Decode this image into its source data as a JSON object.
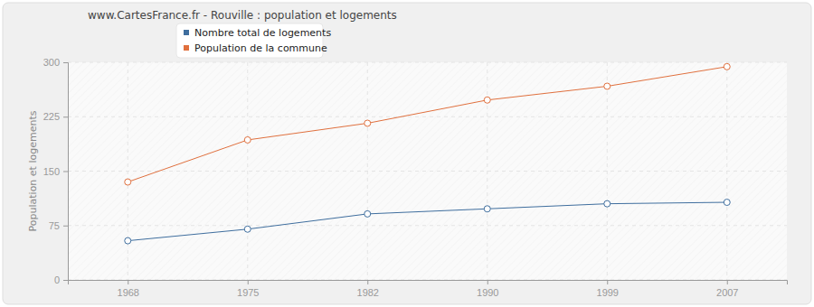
{
  "chart_data": {
    "type": "line",
    "title": "www.CartesFrance.fr - Rouville : population et logements",
    "y_label": "Population et logements",
    "categories": [
      "1968",
      "1975",
      "1982",
      "1990",
      "1999",
      "2007"
    ],
    "series": [
      {
        "name": "Nombre total de logements",
        "color": "#3f6e9e",
        "values": [
          54,
          70,
          91,
          98,
          105,
          107
        ]
      },
      {
        "name": "Population de la commune",
        "color": "#e0703e",
        "values": [
          135,
          193,
          216,
          248,
          267,
          294
        ]
      }
    ],
    "ylim": [
      0,
      300
    ],
    "yticks": [
      0,
      75,
      150,
      225,
      300
    ],
    "grid": true,
    "legend": "top",
    "marker": "circle"
  }
}
